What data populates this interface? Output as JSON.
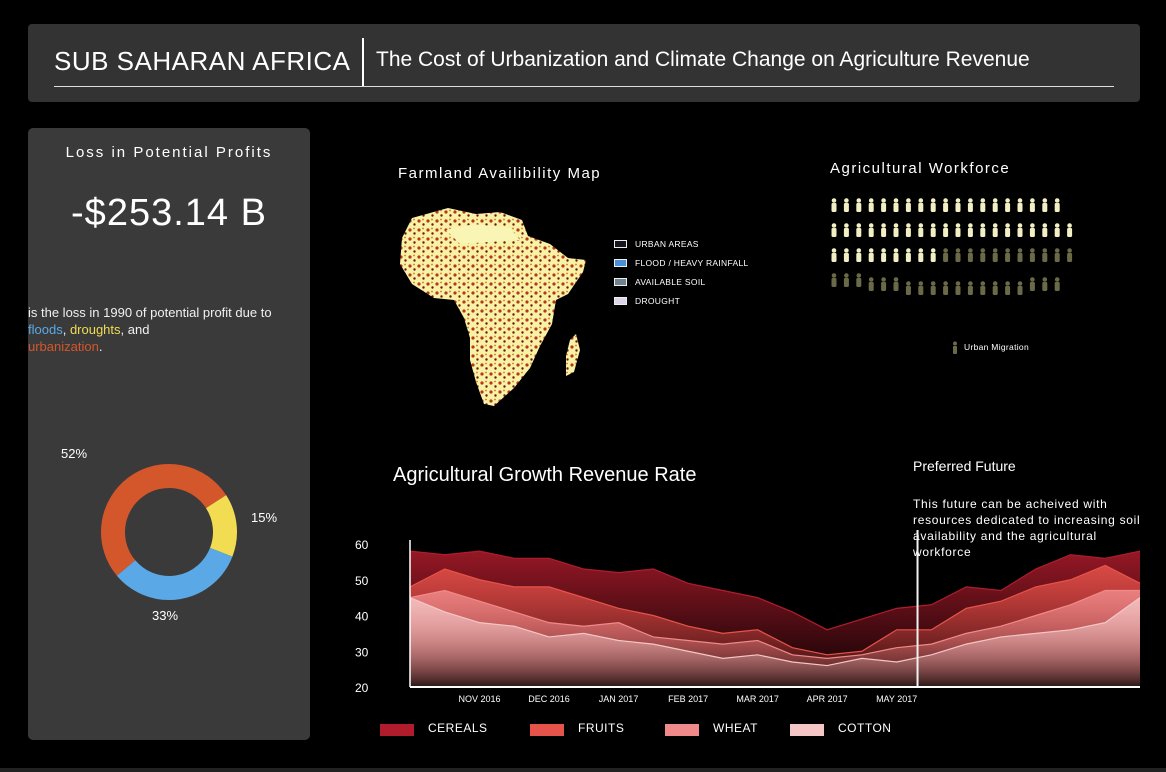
{
  "header": {
    "region": "SUB SAHARAN AFRICA",
    "subtitle": "The Cost of Urbanization and Climate Change on Agriculture Revenue"
  },
  "loss_panel": {
    "heading": "Loss in Potential Profits",
    "value": "-$253.14 B",
    "desc_prefix": "is the loss in 1990 of potential profit due to ",
    "flood_word": "floods",
    "comma1": ", ",
    "drought_word": "droughts",
    "and_text": ", and",
    "urban_word": "urbanization",
    "period": "."
  },
  "map": {
    "title": "Farmland Availibility Map",
    "legend": [
      {
        "label": "URBAN AREAS",
        "color": "#15151f"
      },
      {
        "label": "FLOOD / HEAVY RAINFALL",
        "color": "#4a8fd6"
      },
      {
        "label": "AVAILABLE SOIL",
        "color": "#6e8290"
      },
      {
        "label": "DROUGHT",
        "color": "#dcd4e8"
      }
    ]
  },
  "workforce": {
    "title": "Agricultural Workforce",
    "legend_label": "Urban Migration",
    "rows": [
      {
        "total": 19,
        "migrated": 0
      },
      {
        "total": 20,
        "migrated": 0
      },
      {
        "total": 20,
        "migrated": 11
      },
      {
        "total": 19,
        "migrated": 19
      }
    ],
    "colors": {
      "worker": "#f3efc4",
      "migrant": "#6b6a48"
    }
  },
  "future": {
    "title": "Preferred Future",
    "text": "This future can be acheived with resources dedicated to increasing soil availability and the agricultural workforce"
  },
  "chart_data": [
    {
      "type": "pie",
      "title": "",
      "labels": [
        "urbanization",
        "droughts",
        "floods"
      ],
      "values": [
        52,
        15,
        33
      ],
      "value_labels": [
        "52%",
        "15%",
        "33%"
      ],
      "colors": [
        "#d4562b",
        "#f2dc52",
        "#5aa9e6"
      ]
    },
    {
      "type": "area",
      "title": "Agricultural Growth Revenue Rate",
      "xlabel": "",
      "ylabel": "",
      "ylim": [
        20,
        60
      ],
      "yticks": [
        20,
        30,
        40,
        50,
        60
      ],
      "grid": false,
      "legend_position": "bottom",
      "x": [
        0,
        0.5,
        1,
        1.5,
        2,
        2.5,
        3,
        3.5,
        4,
        4.5,
        5,
        5.5,
        6,
        6.5,
        7,
        7.5,
        8,
        8.5,
        9,
        9.5,
        10,
        10.5
      ],
      "x_ticks": [
        {
          "pos": 1,
          "label": "NOV 2016"
        },
        {
          "pos": 2,
          "label": "DEC 2016"
        },
        {
          "pos": 3,
          "label": "JAN 2017"
        },
        {
          "pos": 4,
          "label": "FEB 2017"
        },
        {
          "pos": 5,
          "label": "MAR 2017"
        },
        {
          "pos": 6,
          "label": "APR  2017"
        },
        {
          "pos": 7,
          "label": "MAY 2017"
        }
      ],
      "divider_x": 7.3,
      "series": [
        {
          "name": "CEREALS",
          "color": "#b01c2c",
          "values": [
            58,
            57,
            58,
            56,
            56,
            53,
            52,
            53,
            49,
            47,
            45,
            41,
            36,
            39,
            42,
            43,
            48,
            47,
            53,
            57,
            56,
            58
          ]
        },
        {
          "name": "FRUITS",
          "color": "#e6534a",
          "values": [
            48,
            53,
            50,
            48,
            48,
            45,
            42,
            40,
            37,
            35,
            36,
            31,
            29,
            30,
            36,
            36,
            42,
            44,
            48,
            50,
            54,
            49
          ]
        },
        {
          "name": "WHEAT",
          "color": "#f08a8a",
          "values": [
            45,
            47,
            44,
            41,
            38,
            37,
            38,
            34,
            33,
            32,
            33,
            29,
            28,
            29,
            31,
            32,
            35,
            37,
            40,
            43,
            47,
            47
          ]
        },
        {
          "name": "COTTON",
          "color": "#f4c6c6",
          "values": [
            45,
            41,
            38,
            37,
            34,
            35,
            33,
            32,
            30,
            28,
            29,
            27,
            26,
            28,
            27,
            29,
            32,
            34,
            35,
            36,
            38,
            45
          ]
        }
      ]
    }
  ]
}
